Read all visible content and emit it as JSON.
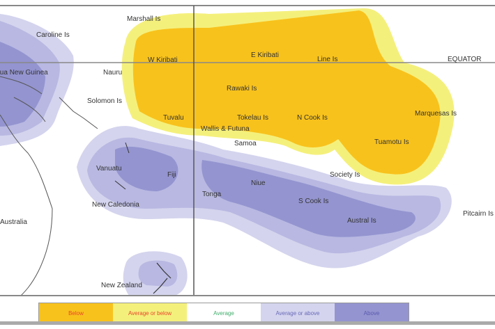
{
  "map": {
    "equator_label": "EQUATOR",
    "labels": {
      "marshall": "Marshall Is",
      "caroline": "Caroline Is",
      "png": "Papua New Guinea",
      "nauru": "Nauru",
      "wkiribati": "W Kiribati",
      "ekiribati": "E Kiribati",
      "line": "Line Is",
      "solomon": "Solomon Is",
      "phoenix": "Rawaki Is",
      "tuvalu": "Tuvalu",
      "tokelau": "Tokelau Is",
      "ncook": "N Cook Is",
      "marquesas": "Marquesas Is",
      "wallis": "Wallis & Futuna",
      "samoa": "Samoa",
      "tuamotu": "Tuamotu Is",
      "society": "Society Is",
      "vanuatu": "Vanuatu",
      "fiji": "Fiji",
      "newcal": "New Caledonia",
      "tonga": "Tonga",
      "niue": "Niue",
      "scook": "S Cook Is",
      "austral": "Austral Is",
      "pitcairn": "Pitcairn Is",
      "australia": "Australia",
      "nz": "New Zealand"
    }
  },
  "legend": [
    {
      "label": "Below",
      "color": "#f8c21c",
      "text_color": "#e8452a"
    },
    {
      "label": "Average or below",
      "color": "#f4f07c",
      "text_color": "#e8452a"
    },
    {
      "label": "Average",
      "color": "#ffffff",
      "text_color": "#3fae6a"
    },
    {
      "label": "Average or above",
      "color": "#d4d4ee",
      "text_color": "#6a6ab8"
    },
    {
      "label": "Above",
      "color": "#9494d0",
      "text_color": "#5a5ab0"
    }
  ]
}
